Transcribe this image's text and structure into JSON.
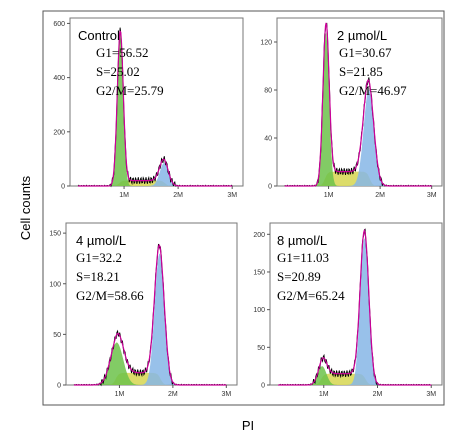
{
  "figure": {
    "ylabel": "Cell counts",
    "xlabel": "PI"
  },
  "colors": {
    "g1": "#6cc24a",
    "s": "#d8d85a",
    "g2m": "#86b6e6",
    "fit": "#cc0099",
    "raw": "#000000"
  },
  "chart_data": [
    {
      "type": "area",
      "label": "Control",
      "stats": [
        "G1=56.52",
        "S=25.02",
        "G2/M=25.79"
      ],
      "x_ticks": [
        "1M",
        "2M",
        "3M"
      ],
      "x_range": [
        0,
        3.2
      ],
      "y_ticks": [
        "0",
        "200",
        "400",
        "600"
      ],
      "y_range": [
        0,
        620
      ],
      "phases": {
        "G1": 56.52,
        "S": 25.02,
        "G2M": 25.79
      },
      "peaks": {
        "g1_pos": 0.93,
        "g1_height": 560,
        "g1_width": 0.055,
        "g2_pos": 1.74,
        "g2_height": 85,
        "g2_width": 0.08,
        "s_level": 20
      }
    },
    {
      "type": "area",
      "label": "2 µmol/L",
      "stats": [
        "G1=30.67",
        "S=21.85",
        "G2/M=46.97"
      ],
      "x_ticks": [
        "1M",
        "2M",
        "3M"
      ],
      "x_range": [
        0,
        3.2
      ],
      "y_ticks": [
        "0",
        "40",
        "80",
        "120"
      ],
      "y_range": [
        0,
        140
      ],
      "phases": {
        "G1": 30.67,
        "S": 21.85,
        "G2M": 46.97
      },
      "peaks": {
        "g1_pos": 0.95,
        "g1_height": 128,
        "g1_width": 0.06,
        "g2_pos": 1.78,
        "g2_height": 80,
        "g2_width": 0.1,
        "s_level": 12
      }
    },
    {
      "type": "area",
      "label": "4 µmol/L",
      "stats": [
        "G1=32.2",
        "S=18.21",
        "G2/M=58.66"
      ],
      "x_ticks": [
        "1M",
        "2M",
        "3M"
      ],
      "x_range": [
        0,
        3.2
      ],
      "y_ticks": [
        "0",
        "50",
        "100",
        "150"
      ],
      "y_range": [
        0,
        160
      ],
      "phases": {
        "G1": 32.2,
        "S": 18.21,
        "G2M": 58.66
      },
      "peaks": {
        "g1_pos": 0.95,
        "g1_height": 42,
        "g1_width": 0.12,
        "g2_pos": 1.75,
        "g2_height": 130,
        "g2_width": 0.09,
        "s_level": 12
      }
    },
    {
      "type": "area",
      "label": "8 µmol/L",
      "stats": [
        "G1=11.03",
        "S=20.89",
        "G2/M=65.24"
      ],
      "x_ticks": [
        "1M",
        "2M",
        "3M"
      ],
      "x_range": [
        0,
        3.2
      ],
      "y_ticks": [
        "0",
        "50",
        "100",
        "150",
        "200"
      ],
      "y_range": [
        0,
        215
      ],
      "phases": {
        "G1": 11.03,
        "S": 20.89,
        "G2M": 65.24
      },
      "peaks": {
        "g1_pos": 0.97,
        "g1_height": 25,
        "g1_width": 0.08,
        "g2_pos": 1.76,
        "g2_height": 195,
        "g2_width": 0.08,
        "s_level": 15
      }
    }
  ]
}
